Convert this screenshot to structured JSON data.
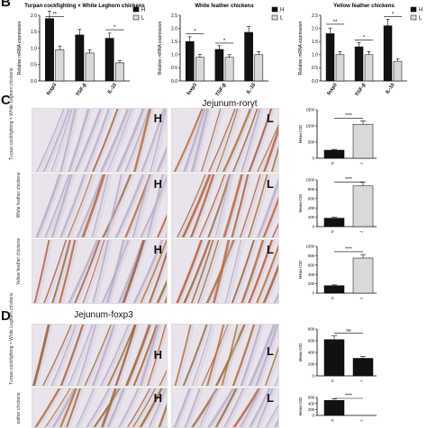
{
  "panels": {
    "b": {
      "letter": "B"
    },
    "c": {
      "letter": "C",
      "title": "Jejunum-rorγt"
    },
    "d": {
      "letter": "D",
      "title": "Jejunum-foxp3"
    }
  },
  "legend": {
    "h": "H",
    "l": "L"
  },
  "row_labels": {
    "r1": "Turpan cockfighting × White Leghorn chickens",
    "r2": "White feather chickens",
    "r3": "Yellow feather chickens",
    "r4": "eather chickens"
  },
  "micro_letters": {
    "h": "H",
    "l": "L"
  },
  "chart_data": [
    {
      "type": "bar",
      "title": "Turpan cockfighting × White Leghorn chickens",
      "ylabel": "Relative mRNA expression",
      "categories": [
        "foxp3",
        "TGF-β",
        "IL-10"
      ],
      "ylim": [
        0,
        2.0
      ],
      "yticks": [
        "0.0",
        "0.5",
        "1.0",
        "1.5",
        "2.0"
      ],
      "series": [
        {
          "name": "H",
          "values": [
            1.9,
            1.4,
            1.3
          ]
        },
        {
          "name": "L",
          "values": [
            0.95,
            0.85,
            0.55
          ]
        }
      ],
      "significance": [
        "**",
        "",
        "*"
      ]
    },
    {
      "type": "bar",
      "title": "White feather chickens",
      "ylabel": "Relative mRNA expression",
      "categories": [
        "foxp3",
        "TGF-β",
        "IL-10"
      ],
      "ylim": [
        0,
        2.5
      ],
      "yticks": [
        "0.0",
        "0.5",
        "1.0",
        "1.5",
        "2.0",
        "2.5"
      ],
      "series": [
        {
          "name": "H",
          "values": [
            1.5,
            1.2,
            1.85
          ]
        },
        {
          "name": "L",
          "values": [
            0.9,
            0.9,
            1.0
          ]
        }
      ],
      "significance": [
        "*",
        "*",
        ""
      ]
    },
    {
      "type": "bar",
      "title": "Yellow feather chickens",
      "ylabel": "Relative mRNA expression",
      "categories": [
        "foxp3",
        "TGF-β",
        "IL-10"
      ],
      "ylim": [
        0,
        2.5
      ],
      "yticks": [
        "0.0",
        "0.5",
        "1.0",
        "1.5",
        "2.0",
        "2.5"
      ],
      "series": [
        {
          "name": "H",
          "values": [
            1.8,
            1.3,
            2.1
          ]
        },
        {
          "name": "L",
          "values": [
            1.0,
            1.0,
            0.75
          ]
        }
      ],
      "significance": [
        "**",
        "*",
        "*"
      ]
    },
    {
      "type": "bar",
      "ylabel": "Mean IOD",
      "categories": [
        "H",
        "L"
      ],
      "ylim": [
        0,
        1500
      ],
      "yticks": [
        "0",
        "500",
        "1000",
        "1500"
      ],
      "values": [
        250,
        1050
      ],
      "colors": [
        "#111111",
        "#d9d9d9"
      ],
      "significance": "****"
    },
    {
      "type": "bar",
      "ylabel": "Mean IOD",
      "categories": [
        "H",
        "L"
      ],
      "ylim": [
        0,
        1000
      ],
      "yticks": [
        "0",
        "200",
        "400",
        "600",
        "800",
        "1000"
      ],
      "values": [
        180,
        870
      ],
      "colors": [
        "#111111",
        "#d9d9d9"
      ],
      "significance": "****"
    },
    {
      "type": "bar",
      "ylabel": "Mean IOD",
      "categories": [
        "H",
        "L"
      ],
      "ylim": [
        0,
        1000
      ],
      "yticks": [
        "0",
        "200",
        "400",
        "600",
        "800",
        "1000"
      ],
      "values": [
        160,
        750
      ],
      "colors": [
        "#111111",
        "#d9d9d9"
      ],
      "significance": "****"
    },
    {
      "type": "bar",
      "ylabel": "Mean IOD",
      "categories": [
        "H",
        "L"
      ],
      "ylim": [
        0,
        800
      ],
      "yticks": [
        "0",
        "200",
        "400",
        "600",
        "800"
      ],
      "values": [
        620,
        300
      ],
      "colors": [
        "#111111",
        "#111111"
      ],
      "significance": "ns"
    },
    {
      "type": "bar",
      "ylabel": "Mean IOD",
      "categories": [
        "H",
        "L"
      ],
      "ylim": [
        0,
        600
      ],
      "yticks": [
        "0",
        "200",
        "400",
        "600"
      ],
      "values": [
        500,
        0
      ],
      "colors": [
        "#111111",
        "#d9d9d9"
      ],
      "significance": "****"
    }
  ]
}
